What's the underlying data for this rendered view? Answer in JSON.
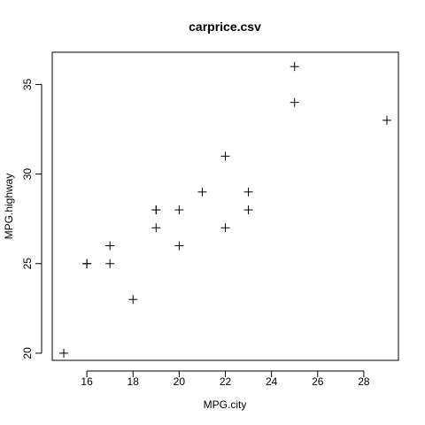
{
  "chart_data": {
    "type": "scatter",
    "title": "carprice.csv",
    "xlabel": "MPG.city",
    "ylabel": "MPG.highway",
    "xlim": [
      14.5,
      29.5
    ],
    "ylim": [
      19.6,
      36.8
    ],
    "xticks": [
      16,
      18,
      20,
      22,
      24,
      26,
      28
    ],
    "yticks": [
      20,
      25,
      30,
      35
    ],
    "marker": "plus",
    "grid": false,
    "points": [
      {
        "x": 15,
        "y": 20
      },
      {
        "x": 16,
        "y": 25
      },
      {
        "x": 16,
        "y": 25
      },
      {
        "x": 17,
        "y": 25
      },
      {
        "x": 17,
        "y": 26
      },
      {
        "x": 18,
        "y": 23
      },
      {
        "x": 19,
        "y": 27
      },
      {
        "x": 19,
        "y": 28
      },
      {
        "x": 19,
        "y": 28
      },
      {
        "x": 20,
        "y": 26
      },
      {
        "x": 20,
        "y": 28
      },
      {
        "x": 21,
        "y": 29
      },
      {
        "x": 22,
        "y": 27
      },
      {
        "x": 22,
        "y": 31
      },
      {
        "x": 23,
        "y": 28
      },
      {
        "x": 23,
        "y": 29
      },
      {
        "x": 25,
        "y": 34
      },
      {
        "x": 25,
        "y": 36
      },
      {
        "x": 29,
        "y": 33
      }
    ]
  }
}
